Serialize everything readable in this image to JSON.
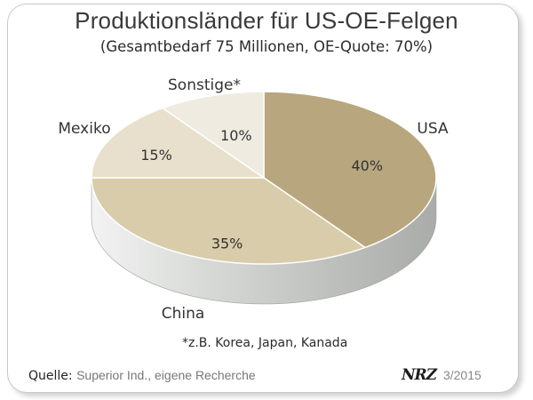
{
  "title": "Produktionsländer für US-OE-Felgen",
  "subtitle": "(Gesamtbedarf 75 Millionen, OE-Quote: 70%)",
  "footnote": "*z.B. Korea, Japan, Kanada",
  "source": {
    "label": "Quelle:",
    "text": "Superior Ind., eigene Recherche"
  },
  "credit": {
    "logo_text": "NRZ",
    "issue": "3/2015"
  },
  "colors": {
    "usa": "#b8a77e",
    "china": "#d9ccaa",
    "mexiko": "#e8e0cc",
    "sonstige": "#efebe1",
    "side": "#c8cbc8",
    "text": "#333333"
  },
  "chart_data": {
    "type": "pie",
    "title": "Produktionsländer für US-OE-Felgen",
    "subtitle": "(Gesamtbedarf 75 Millionen, OE-Quote: 70%)",
    "slices": [
      {
        "label": "USA",
        "value": 40,
        "value_label": "40%"
      },
      {
        "label": "China",
        "value": 35,
        "value_label": "35%"
      },
      {
        "label": "Mexiko",
        "value": 15,
        "value_label": "15%"
      },
      {
        "label": "Sonstige*",
        "value": 10,
        "value_label": "10%"
      }
    ]
  }
}
